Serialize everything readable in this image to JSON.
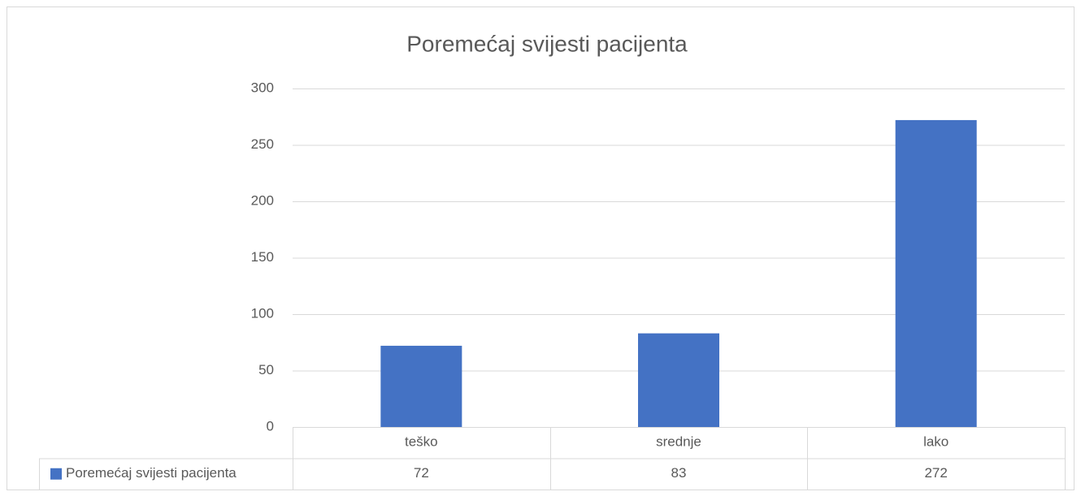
{
  "chart_data": {
    "type": "bar",
    "title": "Poremećaj svijesti pacijenta",
    "categories": [
      "teško",
      "srednje",
      "lako"
    ],
    "series": [
      {
        "name": "Poremećaj svijesti pacijenta",
        "color": "#4472c4",
        "values": [
          72,
          83,
          272
        ]
      }
    ],
    "ylim": [
      0,
      300
    ],
    "yticks": [
      0,
      50,
      100,
      150,
      200,
      250,
      300
    ],
    "grid": true,
    "data_table": true
  }
}
